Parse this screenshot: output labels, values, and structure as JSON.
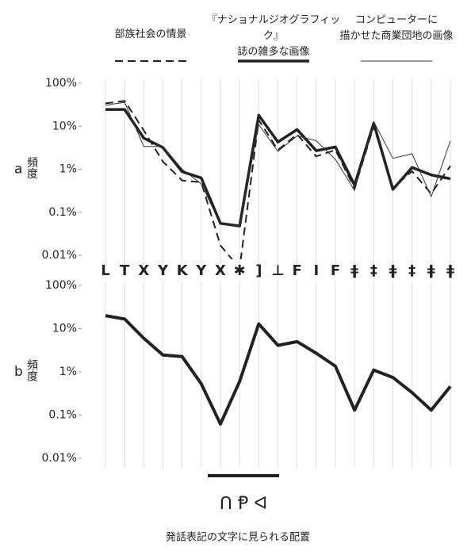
{
  "chart_data": [
    {
      "type": "line",
      "panel": "a",
      "ylabel": "頻度",
      "log": true,
      "grid": "x",
      "categories": [
        "L",
        "T",
        "X",
        "Y",
        "K",
        "Y",
        "X",
        "✱",
        "]",
        "⊥",
        "F",
        "I",
        "F",
        "ǂ",
        "‡",
        "ǂ",
        "‡",
        "ǂ",
        "ǂ"
      ],
      "ylim": [
        0.01,
        100
      ],
      "yticks": [
        {
          "value": 0.01,
          "label": "0.01%"
        },
        {
          "value": 0.1,
          "label": "0.1%"
        },
        {
          "value": 1,
          "label": "1%"
        },
        {
          "value": 10,
          "label": "10%"
        },
        {
          "value": 100,
          "label": "100%"
        }
      ],
      "series": [
        {
          "name": "部族社会の情景",
          "color": "#222222",
          "style": "dashed",
          "width": 2,
          "values": [
            34,
            39,
            8,
            1.5,
            0.55,
            0.5,
            0.017,
            0.005,
            14,
            2.8,
            6.5,
            2,
            2.8,
            0.36,
            10,
            0.37,
            0.9,
            0.27,
            1.2
          ]
        },
        {
          "name": "『ナショナルジオグラフィック』\n誌の雑多な画像",
          "color": "#222222",
          "style": "solid",
          "width": 3.5,
          "values": [
            24.5,
            24.5,
            5.3,
            3.2,
            0.88,
            0.63,
            0.055,
            0.048,
            18,
            4.3,
            8.4,
            2.7,
            3.3,
            0.43,
            11.8,
            0.34,
            1.1,
            0.74,
            0.6
          ]
        },
        {
          "name": "コンピューターに\n描かせた商業団地の画像",
          "color": "#333333",
          "style": "solid",
          "width": 1,
          "values": [
            31,
            36,
            3.4,
            3.4,
            1.0,
            0.46,
            0.053,
            0.048,
            11,
            2.6,
            6,
            4.6,
            1.7,
            0.32,
            12.9,
            1.8,
            2.3,
            0.23,
            4.6
          ]
        }
      ]
    },
    {
      "type": "line",
      "panel": "b",
      "ylabel": "頻度",
      "log": true,
      "grid": "x",
      "ylim": [
        0.01,
        100
      ],
      "yticks": [
        {
          "value": 0.01,
          "label": "0.01%"
        },
        {
          "value": 0.1,
          "label": "0.1%"
        },
        {
          "value": 1,
          "label": "1%"
        },
        {
          "value": 10,
          "label": "10%"
        },
        {
          "value": 100,
          "label": "100%"
        }
      ],
      "series": [
        {
          "color": "#222222",
          "style": "solid",
          "width": 4,
          "values": [
            20,
            16.7,
            6,
            2.45,
            2.25,
            0.53,
            0.062,
            0.6,
            12.9,
            4.1,
            5,
            2.7,
            1.35,
            0.13,
            1.1,
            0.74,
            0.33,
            0.13,
            0.46
          ]
        }
      ],
      "annotation": "ᑎ Ᵽ ᐊ",
      "xlabel": "発話表記の文字に見られる配置"
    }
  ]
}
